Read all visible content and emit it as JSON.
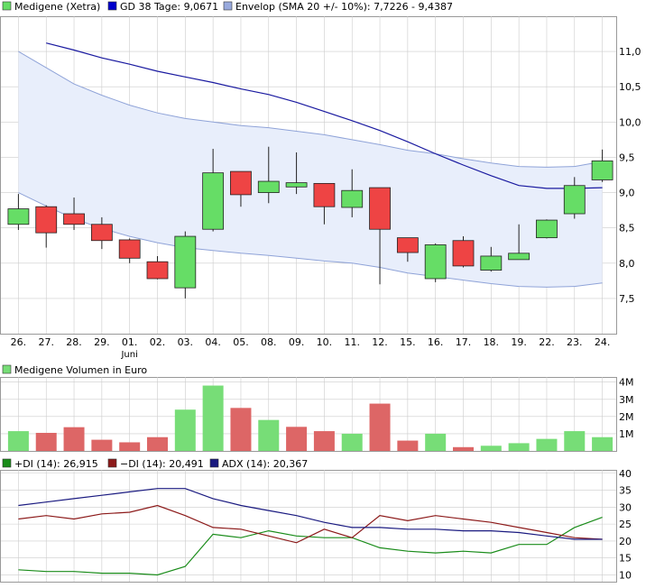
{
  "colors": {
    "up": "#66dd66",
    "down": "#ee4444",
    "vol_up": "#77dd77",
    "vol_down": "#dd6666",
    "sma": "#1a1aa0",
    "envelope_fill": "#e8eefb",
    "envelope_line": "#8fa3d8",
    "di_plus": "#1a8c1a",
    "di_minus": "#8c1a1a",
    "adx": "#1a1a80",
    "grid": "#cccccc"
  },
  "chart_data": [
    {
      "type": "candlestick",
      "legend": [
        {
          "color": "#66dd66",
          "text": "Medigene (Xetra)"
        },
        {
          "color": "#0000cc",
          "text": "GD 38 Tage: 9,0671"
        },
        {
          "color": "#99aadd",
          "text": "Envelop (SMA 20 +/- 10%): 7,7226 - 9,4387"
        }
      ],
      "categories": [
        "26.",
        "27.",
        "28.",
        "29.",
        "01.",
        "02.",
        "03.",
        "04.",
        "05.",
        "08.",
        "09.",
        "10.",
        "11.",
        "12.",
        "15.",
        "16.",
        "17.",
        "18.",
        "19.",
        "22.",
        "23.",
        "24."
      ],
      "month_label": {
        "text": "Juni",
        "at": "01."
      },
      "ylim": [
        7.0,
        11.5
      ],
      "yticks": [
        "7,5",
        "8,0",
        "8,5",
        "9,0",
        "9,5",
        "10,0",
        "10,5",
        "11,0"
      ],
      "ytick_values": [
        7.5,
        8.0,
        8.5,
        9.0,
        9.5,
        10.0,
        10.5,
        11.0
      ],
      "grid": true,
      "ohlc": [
        {
          "o": 8.55,
          "h": 8.98,
          "l": 8.47,
          "c": 8.77
        },
        {
          "o": 8.8,
          "h": 8.82,
          "l": 8.22,
          "c": 8.43
        },
        {
          "o": 8.7,
          "h": 8.93,
          "l": 8.47,
          "c": 8.55
        },
        {
          "o": 8.55,
          "h": 8.65,
          "l": 8.2,
          "c": 8.32
        },
        {
          "o": 8.33,
          "h": 8.35,
          "l": 8.0,
          "c": 8.07
        },
        {
          "o": 8.02,
          "h": 8.1,
          "l": 7.77,
          "c": 7.78
        },
        {
          "o": 7.65,
          "h": 8.45,
          "l": 7.5,
          "c": 8.38
        },
        {
          "o": 8.48,
          "h": 9.62,
          "l": 8.45,
          "c": 9.28
        },
        {
          "o": 9.3,
          "h": 9.3,
          "l": 8.8,
          "c": 8.97
        },
        {
          "o": 9.0,
          "h": 9.65,
          "l": 8.85,
          "c": 9.16
        },
        {
          "o": 9.08,
          "h": 9.57,
          "l": 8.98,
          "c": 9.14
        },
        {
          "o": 9.13,
          "h": 9.13,
          "l": 8.55,
          "c": 8.8
        },
        {
          "o": 8.79,
          "h": 9.33,
          "l": 8.65,
          "c": 9.03
        },
        {
          "o": 9.07,
          "h": 9.07,
          "l": 7.7,
          "c": 8.48
        },
        {
          "o": 8.36,
          "h": 8.36,
          "l": 8.02,
          "c": 8.15
        },
        {
          "o": 7.78,
          "h": 8.28,
          "l": 7.73,
          "c": 8.26
        },
        {
          "o": 8.32,
          "h": 8.38,
          "l": 7.94,
          "c": 7.96
        },
        {
          "o": 7.9,
          "h": 8.23,
          "l": 7.88,
          "c": 8.1
        },
        {
          "o": 8.05,
          "h": 8.55,
          "l": 8.05,
          "c": 8.14
        },
        {
          "o": 8.36,
          "h": 8.62,
          "l": 8.35,
          "c": 8.61
        },
        {
          "o": 8.7,
          "h": 9.22,
          "l": 8.63,
          "c": 9.1
        },
        {
          "o": 9.18,
          "h": 9.61,
          "l": 9.15,
          "c": 9.45
        }
      ],
      "sma38": [
        null,
        11.12,
        11.02,
        10.91,
        10.82,
        10.72,
        10.64,
        10.56,
        10.47,
        10.39,
        10.28,
        10.15,
        10.02,
        9.88,
        9.72,
        9.55,
        9.39,
        9.24,
        9.1,
        9.06,
        9.06,
        9.07
      ],
      "envelope_upper": [
        11.0,
        10.77,
        10.54,
        10.38,
        10.24,
        10.13,
        10.05,
        10.0,
        9.95,
        9.92,
        9.87,
        9.82,
        9.75,
        9.68,
        9.6,
        9.55,
        9.48,
        9.42,
        9.37,
        9.36,
        9.37,
        9.44
      ],
      "envelope_lower": [
        9.0,
        8.81,
        8.63,
        8.49,
        8.38,
        8.29,
        8.22,
        8.18,
        8.14,
        8.11,
        8.07,
        8.03,
        8.0,
        7.94,
        7.86,
        7.81,
        7.76,
        7.71,
        7.67,
        7.66,
        7.67,
        7.72
      ]
    },
    {
      "type": "bar",
      "title": "Medigene Volumen in Euro",
      "ylim": [
        0,
        4.3
      ],
      "yticks": [
        "1M",
        "2M",
        "3M",
        "4M"
      ],
      "ytick_values": [
        1,
        2,
        3,
        4
      ],
      "values": [
        1.15,
        1.05,
        1.38,
        0.65,
        0.5,
        0.8,
        2.4,
        3.8,
        2.5,
        1.8,
        1.4,
        1.15,
        1.0,
        2.75,
        0.6,
        1.0,
        0.22,
        0.3,
        0.45,
        0.7,
        1.15,
        0.8
      ],
      "direction": [
        "up",
        "down",
        "down",
        "down",
        "down",
        "down",
        "up",
        "up",
        "down",
        "up",
        "down",
        "down",
        "up",
        "down",
        "down",
        "up",
        "down",
        "up",
        "up",
        "up",
        "up",
        "up"
      ]
    },
    {
      "type": "line",
      "legend": [
        {
          "color": "#1a8c1a",
          "text": "+DI (14): 26,915"
        },
        {
          "color": "#8c1a1a",
          "text": "−DI (14): 20,491"
        },
        {
          "color": "#1a1a80",
          "text": "ADX (14): 20,367"
        }
      ],
      "ylim": [
        8,
        41
      ],
      "yticks": [
        "10",
        "15",
        "20",
        "25",
        "30",
        "35",
        "40"
      ],
      "ytick_values": [
        10,
        15,
        20,
        25,
        30,
        35,
        40
      ],
      "series": [
        {
          "key": "di_plus",
          "values": [
            11.5,
            11.0,
            11.0,
            10.5,
            10.5,
            10.0,
            12.5,
            22.0,
            21.0,
            23.0,
            21.5,
            21.0,
            21.0,
            18.0,
            17.0,
            16.5,
            17.0,
            16.5,
            19.0,
            19.0,
            24.0,
            27.0
          ]
        },
        {
          "key": "di_minus",
          "values": [
            26.5,
            27.5,
            26.5,
            28.0,
            28.5,
            30.5,
            27.5,
            24.0,
            23.5,
            21.5,
            19.5,
            23.5,
            21.0,
            27.5,
            26.0,
            27.5,
            26.5,
            25.5,
            24.0,
            22.5,
            21.0,
            20.5
          ]
        },
        {
          "key": "adx",
          "values": [
            30.5,
            31.5,
            32.5,
            33.5,
            34.5,
            35.5,
            35.5,
            32.5,
            30.5,
            29.0,
            27.5,
            25.5,
            24.0,
            24.0,
            23.5,
            23.5,
            23.0,
            23.0,
            22.5,
            21.5,
            20.5,
            20.5
          ]
        }
      ]
    }
  ]
}
